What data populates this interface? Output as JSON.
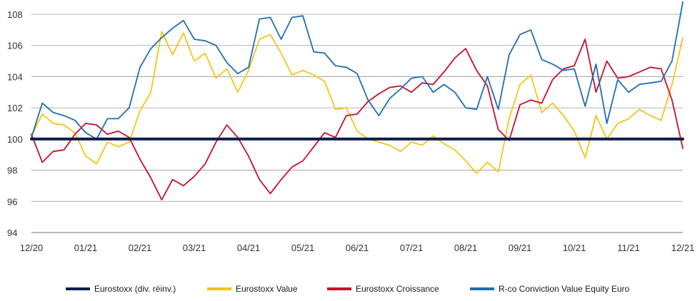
{
  "chart_data": {
    "type": "line",
    "xlabel": "",
    "ylabel": "",
    "x_ticks": [
      "12/20",
      "01/21",
      "02/21",
      "03/21",
      "04/21",
      "05/21",
      "06/21",
      "07/21",
      "08/21",
      "09/21",
      "10/21",
      "11/21",
      "12/21"
    ],
    "ylim": [
      94,
      108
    ],
    "y_ticks": [
      94,
      96,
      98,
      100,
      102,
      104,
      106,
      108
    ],
    "grid": "horizontal",
    "legend_position": "bottom",
    "x_unit": "months since 12/20",
    "series": [
      {
        "name": "Eurostoxx (div. réinv.)",
        "color": "#0d1f4a",
        "x": [
          0,
          12
        ],
        "values": [
          100,
          100
        ]
      },
      {
        "name": "Eurostoxx Value",
        "color": "#f5c518",
        "x": [
          0,
          0.2,
          0.4,
          0.6,
          0.8,
          1.0,
          1.2,
          1.4,
          1.6,
          1.8,
          2.0,
          2.2,
          2.4,
          2.6,
          2.8,
          3.0,
          3.2,
          3.4,
          3.6,
          3.8,
          4.0,
          4.2,
          4.4,
          4.6,
          4.8,
          5.0,
          5.2,
          5.4,
          5.6,
          5.8,
          6.0,
          6.2,
          6.4,
          6.6,
          6.8,
          7.0,
          7.2,
          7.4,
          7.6,
          7.8,
          8.0,
          8.2,
          8.4,
          8.6,
          8.8,
          9.0,
          9.2,
          9.4,
          9.6,
          9.8,
          10.0,
          10.2,
          10.4,
          10.6,
          10.8,
          11.0,
          11.2,
          11.4,
          11.6,
          11.8,
          12.0
        ],
        "values": [
          100.2,
          101.6,
          101.0,
          100.9,
          100.4,
          98.9,
          98.4,
          99.8,
          99.5,
          99.8,
          101.8,
          103.0,
          106.9,
          105.4,
          106.8,
          105.0,
          105.5,
          103.9,
          104.5,
          103.0,
          104.4,
          106.4,
          106.7,
          105.5,
          104.1,
          104.4,
          104.1,
          103.7,
          101.9,
          102.0,
          100.5,
          100.0,
          99.8,
          99.6,
          99.2,
          99.8,
          99.6,
          100.2,
          99.7,
          99.3,
          98.6,
          97.8,
          98.5,
          97.9,
          101.3,
          103.5,
          104.1,
          101.7,
          102.3,
          101.5,
          100.5,
          98.8,
          101.5,
          100.0,
          101.0,
          101.3,
          101.9,
          101.5,
          101.2,
          103.5,
          106.5
        ]
      },
      {
        "name": "Eurostoxx Croissance",
        "color": "#c8102e",
        "x": [
          0,
          0.2,
          0.4,
          0.6,
          0.8,
          1.0,
          1.2,
          1.4,
          1.6,
          1.8,
          2.0,
          2.2,
          2.4,
          2.6,
          2.8,
          3.0,
          3.2,
          3.4,
          3.6,
          3.8,
          4.0,
          4.2,
          4.4,
          4.6,
          4.8,
          5.0,
          5.2,
          5.4,
          5.6,
          5.8,
          6.0,
          6.2,
          6.4,
          6.6,
          6.8,
          7.0,
          7.2,
          7.4,
          7.6,
          7.8,
          8.0,
          8.2,
          8.4,
          8.6,
          8.8,
          9.0,
          9.2,
          9.4,
          9.6,
          9.8,
          10.0,
          10.2,
          10.4,
          10.6,
          10.8,
          11.0,
          11.2,
          11.4,
          11.6,
          11.8,
          12.0
        ],
        "values": [
          100.3,
          98.5,
          99.2,
          99.3,
          100.3,
          101.0,
          100.9,
          100.3,
          100.5,
          100.1,
          98.7,
          97.5,
          96.1,
          97.4,
          97.0,
          97.6,
          98.4,
          99.8,
          100.9,
          100.1,
          98.9,
          97.4,
          96.5,
          97.4,
          98.2,
          98.6,
          99.5,
          100.4,
          100.1,
          101.5,
          101.6,
          102.4,
          102.9,
          103.3,
          103.4,
          103.0,
          103.6,
          103.5,
          104.3,
          105.2,
          105.8,
          104.4,
          103.4,
          100.6,
          99.9,
          102.2,
          102.5,
          102.3,
          103.8,
          104.5,
          104.7,
          106.4,
          103.0,
          105.0,
          103.9,
          104.0,
          104.3,
          104.6,
          104.5,
          102.5,
          99.4
        ]
      },
      {
        "name": "R-co Conviction Value Equity Euro",
        "color": "#1f6eb3",
        "x": [
          0,
          0.2,
          0.4,
          0.6,
          0.8,
          1.0,
          1.2,
          1.4,
          1.6,
          1.8,
          2.0,
          2.2,
          2.4,
          2.6,
          2.8,
          3.0,
          3.2,
          3.4,
          3.6,
          3.8,
          4.0,
          4.2,
          4.4,
          4.6,
          4.8,
          5.0,
          5.2,
          5.4,
          5.6,
          5.8,
          6.0,
          6.2,
          6.4,
          6.6,
          6.8,
          7.0,
          7.2,
          7.4,
          7.6,
          7.8,
          8.0,
          8.2,
          8.4,
          8.6,
          8.8,
          9.0,
          9.2,
          9.4,
          9.6,
          9.8,
          10.0,
          10.2,
          10.4,
          10.6,
          10.8,
          11.0,
          11.2,
          11.4,
          11.6,
          11.8,
          12.0
        ],
        "values": [
          100.1,
          102.3,
          101.7,
          101.5,
          101.2,
          100.4,
          100.0,
          101.3,
          101.3,
          102.0,
          104.6,
          105.8,
          106.5,
          107.1,
          107.6,
          106.4,
          106.3,
          106.0,
          104.9,
          104.2,
          104.6,
          107.7,
          107.8,
          106.4,
          107.8,
          107.9,
          105.6,
          105.5,
          104.7,
          104.6,
          104.2,
          102.5,
          101.5,
          102.6,
          103.2,
          103.9,
          104.0,
          103.0,
          103.5,
          103.0,
          102.0,
          101.9,
          104.0,
          101.9,
          105.4,
          106.7,
          107.0,
          105.1,
          104.8,
          104.4,
          104.5,
          102.1,
          104.8,
          101.0,
          103.8,
          103.0,
          103.5,
          103.6,
          103.7,
          105.0,
          108.8
        ]
      }
    ]
  }
}
